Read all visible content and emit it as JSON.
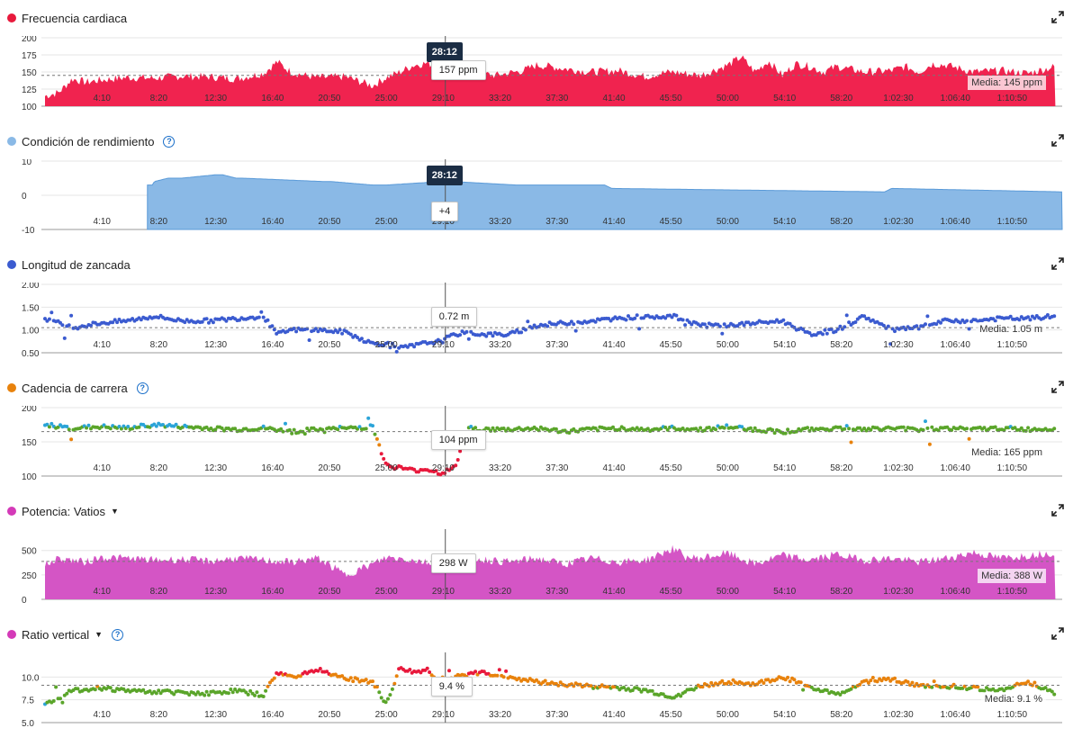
{
  "cursor": {
    "time_label": "28:12",
    "x_index": 28.2
  },
  "x_axis": {
    "ticks": [
      "4:10",
      "8:20",
      "12:30",
      "16:40",
      "20:50",
      "25:00",
      "29:10",
      "33:20",
      "37:30",
      "41:40",
      "45:50",
      "50:00",
      "54:10",
      "58:20",
      "1:02:30",
      "1:06:40",
      "1:10:50"
    ],
    "tick_minutes": [
      4.17,
      8.33,
      12.5,
      16.67,
      20.83,
      25.0,
      29.17,
      33.33,
      37.5,
      41.67,
      45.83,
      50.0,
      54.17,
      58.33,
      62.5,
      66.67,
      70.83
    ],
    "range_minutes": [
      0,
      74.5
    ]
  },
  "panels": [
    {
      "id": "heart-rate",
      "title": "Frecuencia cardiaca",
      "dot_color": "#e8193c",
      "has_help": false,
      "has_caret": false,
      "tooltip": "157 ppm",
      "show_time_box": true,
      "average_label": "Media: 145 ppm"
    },
    {
      "id": "performance",
      "title": "Condición de rendimiento",
      "dot_color": "#8ab9e6",
      "has_help": true,
      "has_caret": false,
      "tooltip": "+4",
      "show_time_box": true,
      "average_label": ""
    },
    {
      "id": "stride",
      "title": "Longitud de zancada",
      "dot_color": "#3b5bd0",
      "has_help": false,
      "has_caret": false,
      "tooltip": "0.72 m",
      "show_time_box": false,
      "average_label": "Media: 1.05 m"
    },
    {
      "id": "cadence",
      "title": "Cadencia de carrera",
      "dot_color": "#e8820c",
      "has_help": true,
      "has_caret": false,
      "tooltip": "104 ppm",
      "show_time_box": false,
      "average_label": "Media: 165 ppm"
    },
    {
      "id": "power",
      "title": "Potencia: Vatios",
      "dot_color": "#d43ab8",
      "has_help": false,
      "has_caret": true,
      "tooltip": "298 W",
      "show_time_box": false,
      "average_label": "Media: 388 W"
    },
    {
      "id": "vertical-ratio",
      "title": "Ratio vertical",
      "dot_color": "#d43ab8",
      "has_help": true,
      "has_caret": true,
      "tooltip": "9.4 %",
      "show_time_box": false,
      "average_label": "Media: 9.1 %"
    }
  ],
  "chart_data": [
    {
      "type": "area",
      "title": "Frecuencia cardiaca",
      "y_ticks": [
        "200",
        "175",
        "150",
        "125",
        "100"
      ],
      "ylim": [
        100,
        200
      ],
      "average": 145,
      "color": "#f0234f",
      "series": [
        {
          "x": [
            0,
            1,
            2,
            3,
            4,
            6,
            8,
            10,
            12,
            14,
            16,
            17,
            18,
            19,
            20,
            22,
            24,
            25,
            26,
            27,
            28,
            29,
            30,
            31,
            33,
            35,
            36,
            37,
            38,
            40,
            42,
            44,
            45,
            46,
            48,
            50,
            51,
            52,
            53,
            54,
            55,
            56,
            57,
            58,
            60,
            62,
            63,
            64,
            65,
            66,
            68,
            70,
            72,
            74
          ],
          "values": [
            115,
            120,
            140,
            135,
            138,
            142,
            141,
            144,
            143,
            140,
            148,
            165,
            150,
            145,
            142,
            143,
            130,
            142,
            150,
            160,
            163,
            157,
            162,
            150,
            145,
            152,
            160,
            158,
            155,
            150,
            152,
            143,
            148,
            150,
            145,
            160,
            172,
            150,
            166,
            145,
            162,
            158,
            150,
            158,
            150,
            152,
            158,
            150,
            162,
            160,
            150,
            152,
            148,
            158
          ]
        }
      ]
    },
    {
      "type": "area",
      "title": "Condición de rendimiento",
      "y_ticks": [
        "10",
        "0",
        "-10"
      ],
      "ylim": [
        -10,
        10
      ],
      "color": "#8ab9e6",
      "series": [
        {
          "x": [
            7.5,
            7.9,
            8.0,
            9.0,
            10.0,
            12.5,
            13.0,
            14.0,
            14.5,
            20.5,
            21.0,
            24.0,
            25.0,
            29.0,
            30.0,
            34.5,
            35.0,
            41.0,
            41.5,
            61.5,
            62.0,
            74.5
          ],
          "values": [
            3,
            3,
            4,
            5,
            5,
            6,
            6,
            5,
            5,
            4,
            4,
            3,
            3,
            4,
            4,
            3,
            3,
            3,
            2,
            1,
            2,
            1
          ]
        }
      ]
    },
    {
      "type": "scatter",
      "title": "Longitud de zancada",
      "y_ticks": [
        "2.00",
        "1.50",
        "1.00",
        "0.50"
      ],
      "ylim": [
        0.5,
        2.0
      ],
      "average": 1.05,
      "color": "#3b5bd0",
      "series": [
        {
          "x": [
            0,
            2,
            4,
            6,
            8,
            10,
            12,
            14,
            16,
            17,
            18,
            20,
            22,
            24,
            25,
            26,
            27,
            28,
            29,
            30,
            31,
            32,
            34,
            36,
            38,
            40,
            42,
            44,
            46,
            48,
            50,
            52,
            54,
            56,
            58,
            60,
            62,
            64,
            66,
            68,
            70,
            72,
            74
          ],
          "values": [
            1.25,
            1.05,
            1.15,
            1.2,
            1.3,
            1.2,
            1.2,
            1.25,
            1.3,
            0.9,
            1.0,
            1.0,
            0.95,
            0.7,
            0.7,
            0.6,
            0.65,
            0.72,
            0.75,
            0.9,
            0.95,
            0.9,
            0.9,
            1.1,
            1.15,
            1.2,
            1.25,
            1.3,
            1.3,
            1.1,
            1.1,
            1.15,
            1.2,
            0.9,
            1.0,
            1.3,
            1.0,
            1.05,
            1.2,
            1.2,
            1.25,
            1.25,
            1.3
          ]
        }
      ]
    },
    {
      "type": "scatter",
      "title": "Cadencia de carrera",
      "y_ticks": [
        "200",
        "150",
        "100"
      ],
      "ylim": [
        100,
        200
      ],
      "average": 165,
      "color": "#5aa52a",
      "series": [
        {
          "x": [
            0,
            2,
            4,
            6,
            8,
            10,
            12,
            14,
            16,
            18,
            20,
            22,
            24,
            25,
            26,
            27,
            28,
            29,
            30,
            31,
            32,
            34,
            36,
            38,
            40,
            42,
            44,
            46,
            48,
            50,
            52,
            54,
            56,
            58,
            60,
            62,
            64,
            66,
            68,
            70,
            72,
            74
          ],
          "values": [
            175,
            170,
            172,
            170,
            175,
            172,
            170,
            168,
            170,
            165,
            168,
            170,
            172,
            115,
            112,
            108,
            110,
            104,
            112,
            170,
            168,
            168,
            170,
            165,
            168,
            170,
            168,
            170,
            168,
            172,
            168,
            165,
            168,
            170,
            168,
            170,
            168,
            170,
            168,
            170,
            168,
            170
          ]
        }
      ]
    },
    {
      "type": "area",
      "title": "Potencia: Vatios",
      "y_ticks": [
        "500",
        "250",
        "0"
      ],
      "ylim": [
        0,
        700
      ],
      "average": 388,
      "color": "#d455c5",
      "series": [
        {
          "x": [
            0,
            1,
            2,
            3,
            4,
            6,
            8,
            10,
            12,
            14,
            16,
            18,
            20,
            22,
            24,
            25,
            26,
            28,
            29,
            30,
            32,
            34,
            36,
            38,
            40,
            42,
            44,
            46,
            47,
            48,
            50,
            52,
            54,
            56,
            58,
            60,
            62,
            64,
            66,
            68,
            70,
            72,
            74
          ],
          "values": [
            350,
            420,
            400,
            380,
            430,
            420,
            400,
            410,
            390,
            420,
            400,
            380,
            420,
            250,
            360,
            430,
            420,
            380,
            298,
            400,
            410,
            380,
            420,
            360,
            420,
            380,
            400,
            520,
            430,
            420,
            470,
            360,
            450,
            400,
            460,
            400,
            420,
            380,
            420,
            480,
            420,
            450,
            480
          ]
        }
      ]
    },
    {
      "type": "scatter",
      "title": "Ratio vertical",
      "y_ticks": [
        "10.0",
        "7.5",
        "5.0"
      ],
      "ylim": [
        5.0,
        12.5
      ],
      "average": 9.1,
      "color": "#5aa52a",
      "series": [
        {
          "x": [
            0,
            2,
            4,
            6,
            8,
            10,
            12,
            14,
            16,
            17,
            18,
            20,
            22,
            24,
            25,
            26,
            27,
            28,
            29,
            30,
            32,
            34,
            36,
            38,
            40,
            42,
            44,
            46,
            48,
            50,
            52,
            54,
            56,
            58,
            60,
            62,
            64,
            66,
            68,
            70,
            72,
            74
          ],
          "values": [
            7.0,
            8.5,
            8.8,
            8.5,
            8.4,
            8.3,
            8.2,
            8.5,
            8.0,
            10.5,
            10.0,
            10.8,
            9.8,
            9.5,
            7.0,
            11.0,
            10.5,
            10.8,
            9.4,
            10.0,
            10.5,
            10.0,
            9.5,
            9.2,
            9.0,
            8.8,
            8.5,
            7.8,
            9.0,
            9.5,
            9.2,
            10.0,
            9.0,
            8.0,
            9.5,
            9.8,
            9.0,
            9.0,
            8.8,
            8.5,
            9.5,
            8.2
          ]
        }
      ]
    }
  ]
}
